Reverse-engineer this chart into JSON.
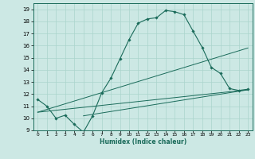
{
  "xlabel": "Humidex (Indice chaleur)",
  "bg_color": "#cce8e4",
  "grid_color": "#aad4cc",
  "line_color": "#1a6b5a",
  "xlim": [
    -0.5,
    23.5
  ],
  "ylim": [
    9,
    19.5
  ],
  "xticks": [
    0,
    1,
    2,
    3,
    4,
    5,
    6,
    7,
    8,
    9,
    10,
    11,
    12,
    13,
    14,
    15,
    16,
    17,
    18,
    19,
    20,
    21,
    22,
    23
  ],
  "yticks": [
    9,
    10,
    11,
    12,
    13,
    14,
    15,
    16,
    17,
    18,
    19
  ],
  "curve_x": [
    0,
    1,
    2,
    3,
    4,
    5,
    6,
    7,
    8,
    9,
    10,
    11,
    12,
    13,
    14,
    15,
    16,
    17,
    18,
    19,
    20,
    21,
    22,
    23
  ],
  "curve_y": [
    11.55,
    11.0,
    10.0,
    10.25,
    9.5,
    8.85,
    10.2,
    12.1,
    13.3,
    14.9,
    16.5,
    17.85,
    18.2,
    18.3,
    18.9,
    18.8,
    18.55,
    17.2,
    15.85,
    14.2,
    13.7,
    12.45,
    12.3,
    12.4
  ],
  "line2_x": [
    0,
    23
  ],
  "line2_y": [
    10.5,
    12.35
  ],
  "line3_x": [
    0,
    23
  ],
  "line3_y": [
    10.5,
    15.8
  ],
  "line4_x": [
    5,
    23
  ],
  "line4_y": [
    10.2,
    12.35
  ]
}
